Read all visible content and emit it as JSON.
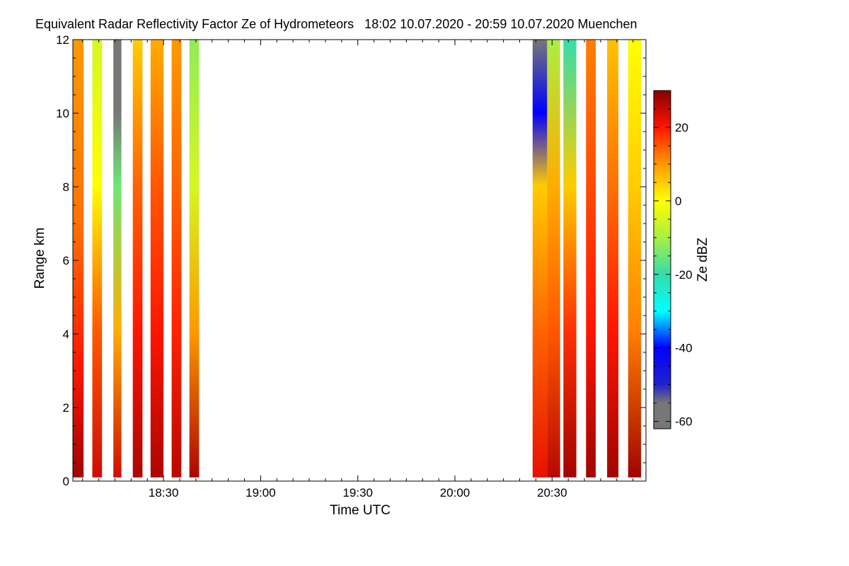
{
  "chart_data": {
    "type": "heatmap",
    "title": "Equivalent Radar Reflectivity Factor Ze of Hydrometeors   18:02 10.07.2020 - 20:59 10.07.2020 Muenchen",
    "xlabel": "Time UTC",
    "ylabel": "Range km",
    "colorbar_label": "Ze dBZ",
    "x_range_minutes_utc": [
      1082,
      1259
    ],
    "y_range_km": [
      0,
      12
    ],
    "x_ticks": [
      {
        "minute": 1110,
        "label": "18:30"
      },
      {
        "minute": 1140,
        "label": "19:00"
      },
      {
        "minute": 1170,
        "label": "19:30"
      },
      {
        "minute": 1200,
        "label": "20:00"
      },
      {
        "minute": 1230,
        "label": "20:30"
      }
    ],
    "y_ticks": [
      {
        "value": 0,
        "label": "0"
      },
      {
        "value": 2,
        "label": "2"
      },
      {
        "value": 4,
        "label": "4"
      },
      {
        "value": 6,
        "label": "6"
      },
      {
        "value": 8,
        "label": "8"
      },
      {
        "value": 10,
        "label": "10"
      },
      {
        "value": 12,
        "label": "12"
      }
    ],
    "colorbar_range_dbz": [
      -62,
      30
    ],
    "colorbar_ticks": [
      {
        "value": 20,
        "label": "20"
      },
      {
        "value": 0,
        "label": "0"
      },
      {
        "value": -20,
        "label": "-20"
      },
      {
        "value": -40,
        "label": "-40"
      },
      {
        "value": -60,
        "label": "-60"
      }
    ],
    "colormap": [
      {
        "value": -62,
        "color": "#777777"
      },
      {
        "value": -55,
        "color": "#777777"
      },
      {
        "value": -50,
        "color": "#2222cc"
      },
      {
        "value": -40,
        "color": "#0000ff"
      },
      {
        "value": -30,
        "color": "#00ffff"
      },
      {
        "value": -20,
        "color": "#33ddaa"
      },
      {
        "value": -10,
        "color": "#aaee44"
      },
      {
        "value": 0,
        "color": "#ffff00"
      },
      {
        "value": 10,
        "color": "#ff9900"
      },
      {
        "value": 20,
        "color": "#ff1500"
      },
      {
        "value": 30,
        "color": "#880000"
      }
    ],
    "segments": [
      {
        "start_min": 1082.0,
        "end_min": 1085.3,
        "profile": [
          {
            "km": 0,
            "dbz": 28
          },
          {
            "km": 3,
            "dbz": 20
          },
          {
            "km": 7,
            "dbz": 13
          },
          {
            "km": 12,
            "dbz": 10
          }
        ]
      },
      {
        "start_min": 1088.0,
        "end_min": 1091.0,
        "profile": [
          {
            "km": 0,
            "dbz": 24
          },
          {
            "km": 4,
            "dbz": 15
          },
          {
            "km": 8,
            "dbz": 0
          },
          {
            "km": 12,
            "dbz": -5
          }
        ]
      },
      {
        "start_min": 1094.5,
        "end_min": 1097.0,
        "profile": [
          {
            "km": 0,
            "dbz": 24
          },
          {
            "km": 4,
            "dbz": 8
          },
          {
            "km": 8,
            "dbz": -15
          },
          {
            "km": 10,
            "dbz": -60
          },
          {
            "km": 12,
            "dbz": -60
          }
        ]
      },
      {
        "start_min": 1100.5,
        "end_min": 1103.5,
        "profile": [
          {
            "km": 0,
            "dbz": 27
          },
          {
            "km": 4,
            "dbz": 20
          },
          {
            "km": 8,
            "dbz": 14
          },
          {
            "km": 12,
            "dbz": 5
          }
        ]
      },
      {
        "start_min": 1106.0,
        "end_min": 1110.0,
        "profile": [
          {
            "km": 0,
            "dbz": 27
          },
          {
            "km": 4,
            "dbz": 20
          },
          {
            "km": 8,
            "dbz": 15
          },
          {
            "km": 12,
            "dbz": 8
          }
        ]
      },
      {
        "start_min": 1112.5,
        "end_min": 1115.5,
        "profile": [
          {
            "km": 0,
            "dbz": 26
          },
          {
            "km": 4,
            "dbz": 19
          },
          {
            "km": 8,
            "dbz": 14
          },
          {
            "km": 12,
            "dbz": 10
          }
        ]
      },
      {
        "start_min": 1118.0,
        "end_min": 1121.0,
        "profile": [
          {
            "km": 0,
            "dbz": 27
          },
          {
            "km": 4,
            "dbz": 10
          },
          {
            "km": 8,
            "dbz": -5
          },
          {
            "km": 12,
            "dbz": -12
          }
        ]
      },
      {
        "start_min": 1224.0,
        "end_min": 1228.5,
        "profile": [
          {
            "km": 0,
            "dbz": 22
          },
          {
            "km": 4,
            "dbz": 14
          },
          {
            "km": 8,
            "dbz": 5
          },
          {
            "km": 10,
            "dbz": -40
          },
          {
            "km": 12,
            "dbz": -60
          }
        ]
      },
      {
        "start_min": 1228.5,
        "end_min": 1232.5,
        "profile": [
          {
            "km": 0,
            "dbz": 26
          },
          {
            "km": 4,
            "dbz": 15
          },
          {
            "km": 8,
            "dbz": 8
          },
          {
            "km": 12,
            "dbz": -10
          }
        ]
      },
      {
        "start_min": 1233.5,
        "end_min": 1237.5,
        "profile": [
          {
            "km": 0,
            "dbz": 28
          },
          {
            "km": 4,
            "dbz": 18
          },
          {
            "km": 8,
            "dbz": 5
          },
          {
            "km": 12,
            "dbz": -20
          }
        ]
      },
      {
        "start_min": 1240.5,
        "end_min": 1243.5,
        "profile": [
          {
            "km": 0,
            "dbz": 28
          },
          {
            "km": 4,
            "dbz": 20
          },
          {
            "km": 8,
            "dbz": 16
          },
          {
            "km": 12,
            "dbz": 12
          }
        ]
      },
      {
        "start_min": 1247.0,
        "end_min": 1250.5,
        "profile": [
          {
            "km": 0,
            "dbz": 28
          },
          {
            "km": 4,
            "dbz": 20
          },
          {
            "km": 8,
            "dbz": 13
          },
          {
            "km": 12,
            "dbz": 6
          }
        ]
      },
      {
        "start_min": 1253.5,
        "end_min": 1257.5,
        "profile": [
          {
            "km": 0,
            "dbz": 28
          },
          {
            "km": 4,
            "dbz": 12
          },
          {
            "km": 8,
            "dbz": 5
          },
          {
            "km": 12,
            "dbz": 0
          }
        ]
      }
    ]
  }
}
